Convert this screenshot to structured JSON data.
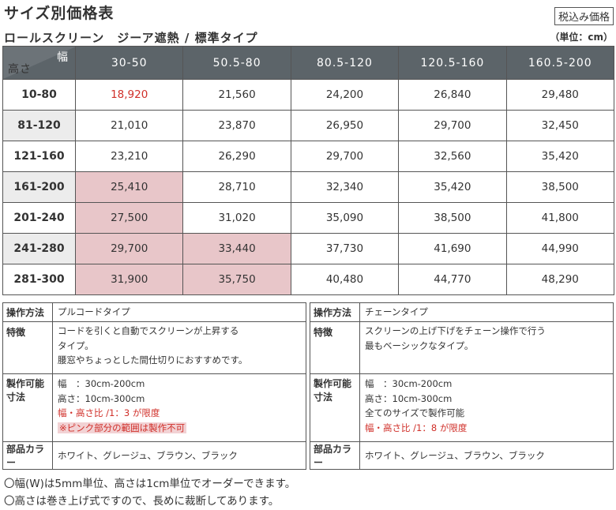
{
  "header": {
    "title": "サイズ別価格表",
    "subtitle": "ロールスクリーン　ジーア遮熱 / 標準タイプ",
    "tax_badge": "税込み価格",
    "unit": "（単位：cm）"
  },
  "price_table": {
    "corner_width_label": "幅",
    "corner_height_label": "高さ",
    "width_headers": [
      "30-50",
      "50.5-80",
      "80.5-120",
      "120.5-160",
      "160.5-200"
    ],
    "rows": [
      {
        "height": "10-80",
        "prices": [
          "18,920",
          "21,560",
          "24,200",
          "26,840",
          "29,480"
        ]
      },
      {
        "height": "81-120",
        "prices": [
          "21,010",
          "23,870",
          "26,950",
          "29,700",
          "32,450"
        ]
      },
      {
        "height": "121-160",
        "prices": [
          "23,210",
          "26,290",
          "29,700",
          "32,560",
          "35,420"
        ]
      },
      {
        "height": "161-200",
        "prices": [
          "25,410",
          "28,710",
          "32,340",
          "35,420",
          "38,500"
        ]
      },
      {
        "height": "201-240",
        "prices": [
          "27,500",
          "31,020",
          "35,090",
          "38,500",
          "41,800"
        ]
      },
      {
        "height": "241-280",
        "prices": [
          "29,700",
          "33,440",
          "37,730",
          "41,690",
          "44,990"
        ]
      },
      {
        "height": "281-300",
        "prices": [
          "31,900",
          "35,750",
          "40,480",
          "44,770",
          "48,290"
        ]
      }
    ],
    "colors": {
      "header_bg": "#5c6469",
      "unavailable_bg": "#e8c6c9",
      "highlight_text": "#d0302a"
    }
  },
  "spec_left": {
    "operation_label": "操作方法",
    "operation_value": "プルコードタイプ",
    "feature_label": "特徴",
    "feature_lines": [
      "コードを引くと自動でスクリーンが上昇する",
      "タイプ。",
      "腰窓やちょっとした間仕切りにおすすめです。"
    ],
    "size_label_1": "製作可能",
    "size_label_2": "寸法",
    "size_lines": [
      "幅　：30cm-200cm",
      "高さ：10cm-300cm"
    ],
    "ratio_note": "幅・高さ比 /1：3 が限度",
    "pink_note": "※ピンク部分の範囲は製作不可",
    "color_label": "部品カラー",
    "color_value": "ホワイト、グレージュ、ブラウン、ブラック"
  },
  "spec_right": {
    "operation_label": "操作方法",
    "operation_value": "チェーンタイプ",
    "feature_label": "特徴",
    "feature_lines": [
      "スクリーンの上げ下げをチェーン操作で行う",
      "最もベーシックなタイプ。"
    ],
    "size_label_1": "製作可能",
    "size_label_2": "寸法",
    "size_lines": [
      "幅　：30cm-200cm",
      "高さ：10cm-300cm",
      "全てのサイズで製作可能"
    ],
    "ratio_note": "幅・高さ比 /1：8 が限度",
    "color_label": "部品カラー",
    "color_value": "ホワイト、グレージュ、ブラウン、ブラック"
  },
  "notes": [
    "〇幅(W)は5mm単位、高さは1cm単位でオーダーできます。",
    "〇高さは巻き上げ式ですので、長めに裁断してあります。"
  ]
}
